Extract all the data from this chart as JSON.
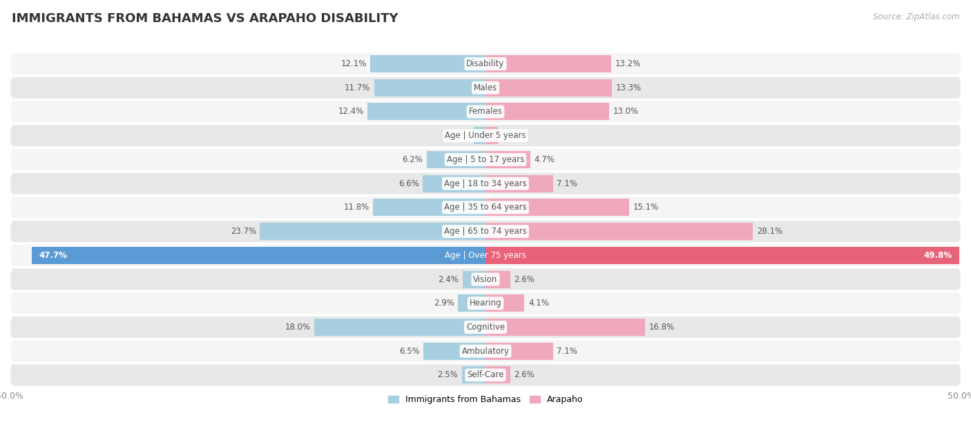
{
  "title": "IMMIGRANTS FROM BAHAMAS VS ARAPAHO DISABILITY",
  "source": "Source: ZipAtlas.com",
  "categories": [
    "Disability",
    "Males",
    "Females",
    "Age | Under 5 years",
    "Age | 5 to 17 years",
    "Age | 18 to 34 years",
    "Age | 35 to 64 years",
    "Age | 65 to 74 years",
    "Age | Over 75 years",
    "Vision",
    "Hearing",
    "Cognitive",
    "Ambulatory",
    "Self-Care"
  ],
  "bahamas_values": [
    12.1,
    11.7,
    12.4,
    1.2,
    6.2,
    6.6,
    11.8,
    23.7,
    47.7,
    2.4,
    2.9,
    18.0,
    6.5,
    2.5
  ],
  "arapaho_values": [
    13.2,
    13.3,
    13.0,
    1.3,
    4.7,
    7.1,
    15.1,
    28.1,
    49.8,
    2.6,
    4.1,
    16.8,
    7.1,
    2.6
  ],
  "bahamas_color": "#a8cfe0",
  "arapaho_color": "#f0a8bc",
  "bahamas_color_highlight": "#5b9bd5",
  "arapaho_color_highlight": "#e8637a",
  "row_bg_light": "#f5f5f5",
  "row_bg_dark": "#e8e8e8",
  "axis_max": 50.0,
  "bar_height": 0.72,
  "legend_label_bahamas": "Immigrants from Bahamas",
  "legend_label_arapaho": "Arapaho",
  "highlight_idx": 8
}
